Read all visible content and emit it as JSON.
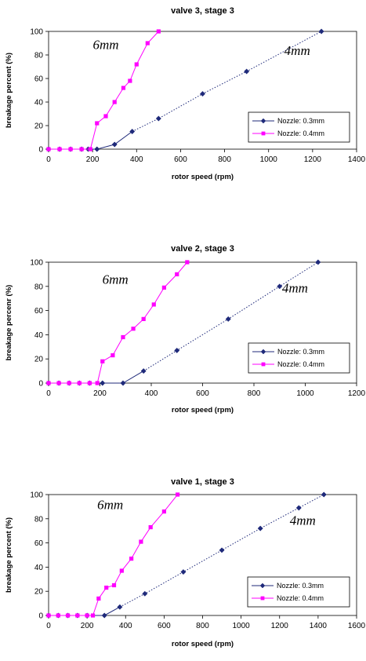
{
  "colors": {
    "blue": "#1F2A7A",
    "magenta": "#FF00FF"
  },
  "chart_data": [
    {
      "type": "line",
      "title": "valve 3, stage 3",
      "xlabel": "rotor speed (rpm)",
      "ylabel": "breakage percent (%)",
      "xlim": [
        0,
        1400
      ],
      "ylim": [
        0,
        100
      ],
      "xticks": [
        0,
        200,
        400,
        600,
        800,
        1000,
        1200,
        1400
      ],
      "yticks": [
        0,
        20,
        40,
        60,
        80,
        100
      ],
      "grid": false,
      "legend": "bottom-right",
      "annotations": [
        {
          "text": "6mm",
          "x": 260,
          "y": 85
        },
        {
          "text": "4mm",
          "x": 1130,
          "y": 80
        }
      ],
      "series": [
        {
          "name": "Nozzle: 0.3mm",
          "color": "#1F2A7A",
          "marker": "diamond",
          "solid": [
            [
              0,
              0
            ],
            [
              50,
              0
            ],
            [
              100,
              0
            ],
            [
              150,
              0
            ],
            [
              180,
              0
            ],
            [
              220,
              0
            ],
            [
              300,
              4
            ],
            [
              380,
              15
            ]
          ],
          "dotted": [
            [
              380,
              15
            ],
            [
              500,
              26
            ],
            [
              700,
              47
            ],
            [
              900,
              66
            ],
            [
              1240,
              100
            ]
          ]
        },
        {
          "name": "Nozzle: 0.4mm",
          "color": "#FF00FF",
          "marker": "square",
          "solid": [
            [
              0,
              0
            ],
            [
              50,
              0
            ],
            [
              100,
              0
            ],
            [
              150,
              0
            ],
            [
              190,
              0
            ],
            [
              220,
              22
            ],
            [
              260,
              28
            ],
            [
              300,
              40
            ],
            [
              340,
              52
            ],
            [
              370,
              58
            ],
            [
              400,
              72
            ],
            [
              450,
              90
            ],
            [
              500,
              100
            ]
          ],
          "dotted": []
        }
      ]
    },
    {
      "type": "line",
      "title": "valve 2, stage 3",
      "xlabel": "rotor speed (rpm)",
      "ylabel": "breakage percenr (%)",
      "xlim": [
        0,
        1200
      ],
      "ylim": [
        0,
        100
      ],
      "xticks": [
        0,
        200,
        400,
        600,
        800,
        1000,
        1200
      ],
      "yticks": [
        0,
        20,
        40,
        60,
        80,
        100
      ],
      "grid": false,
      "legend": "bottom-right",
      "annotations": [
        {
          "text": "6mm",
          "x": 260,
          "y": 82
        },
        {
          "text": "4mm",
          "x": 960,
          "y": 75
        }
      ],
      "series": [
        {
          "name": "Nozzle: 0.3mm",
          "color": "#1F2A7A",
          "marker": "diamond",
          "solid": [
            [
              0,
              0
            ],
            [
              40,
              0
            ],
            [
              80,
              0
            ],
            [
              120,
              0
            ],
            [
              160,
              0
            ],
            [
              210,
              0
            ],
            [
              290,
              0
            ],
            [
              370,
              10
            ]
          ],
          "dotted": [
            [
              370,
              10
            ],
            [
              500,
              27
            ],
            [
              700,
              53
            ],
            [
              900,
              80
            ],
            [
              1050,
              100
            ]
          ]
        },
        {
          "name": "Nozzle: 0.4mm",
          "color": "#FF00FF",
          "marker": "square",
          "solid": [
            [
              0,
              0
            ],
            [
              40,
              0
            ],
            [
              80,
              0
            ],
            [
              120,
              0
            ],
            [
              160,
              0
            ],
            [
              190,
              0
            ],
            [
              210,
              18
            ],
            [
              250,
              23
            ],
            [
              290,
              38
            ],
            [
              330,
              45
            ],
            [
              370,
              53
            ],
            [
              410,
              65
            ],
            [
              450,
              79
            ],
            [
              500,
              90
            ],
            [
              540,
              100
            ]
          ],
          "dotted": []
        }
      ]
    },
    {
      "type": "line",
      "title": "valve 1, stage 3",
      "xlabel": "rotor speed (rpm)",
      "ylabel": "breakage percent (%)",
      "xlim": [
        0,
        1600
      ],
      "ylim": [
        0,
        100
      ],
      "xticks": [
        0,
        200,
        400,
        600,
        800,
        1000,
        1200,
        1400,
        1600
      ],
      "yticks": [
        0,
        20,
        40,
        60,
        80,
        100
      ],
      "grid": false,
      "legend": "bottom-right",
      "annotations": [
        {
          "text": "6mm",
          "x": 320,
          "y": 88
        },
        {
          "text": "4mm",
          "x": 1320,
          "y": 75
        }
      ],
      "series": [
        {
          "name": "Nozzle: 0.3mm",
          "color": "#1F2A7A",
          "marker": "diamond",
          "solid": [
            [
              0,
              0
            ],
            [
              50,
              0
            ],
            [
              100,
              0
            ],
            [
              150,
              0
            ],
            [
              200,
              0
            ],
            [
              290,
              0
            ],
            [
              370,
              7
            ]
          ],
          "dotted": [
            [
              370,
              7
            ],
            [
              500,
              18
            ],
            [
              700,
              36
            ],
            [
              900,
              54
            ],
            [
              1100,
              72
            ],
            [
              1300,
              89
            ],
            [
              1430,
              100
            ]
          ]
        },
        {
          "name": "Nozzle: 0.4mm",
          "color": "#FF00FF",
          "marker": "square",
          "solid": [
            [
              0,
              0
            ],
            [
              50,
              0
            ],
            [
              100,
              0
            ],
            [
              150,
              0
            ],
            [
              200,
              0
            ],
            [
              230,
              0
            ],
            [
              260,
              14
            ],
            [
              300,
              23
            ],
            [
              340,
              25
            ],
            [
              380,
              37
            ],
            [
              430,
              47
            ],
            [
              480,
              61
            ],
            [
              530,
              73
            ],
            [
              600,
              86
            ],
            [
              670,
              100
            ]
          ],
          "dotted": []
        }
      ]
    }
  ]
}
